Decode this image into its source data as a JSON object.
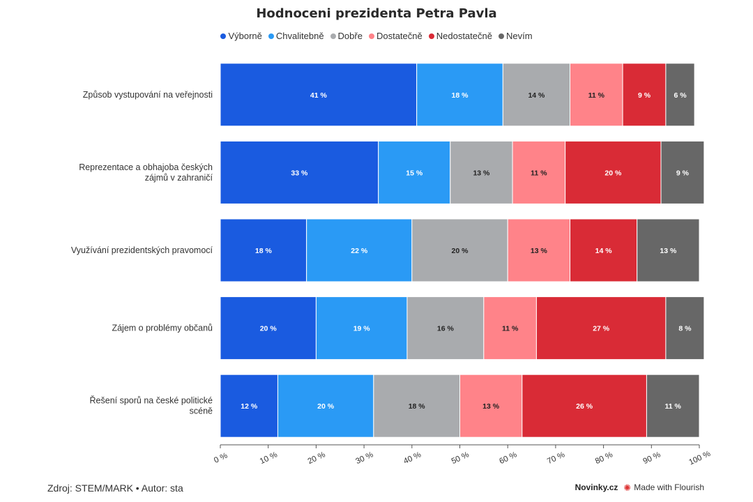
{
  "title": "Hodnoceni prezidenta Petra Pavla",
  "legend": [
    {
      "label": "Výborně",
      "color": "#1a5be0"
    },
    {
      "label": "Chvalitebně",
      "color": "#2a9af5"
    },
    {
      "label": "Dobře",
      "color": "#a9abae"
    },
    {
      "label": "Dostatečně",
      "color": "#ff8389"
    },
    {
      "label": "Nedostatečně",
      "color": "#d92b36"
    },
    {
      "label": "Nevím",
      "color": "#676767"
    }
  ],
  "chart_data": {
    "type": "bar",
    "orientation": "horizontal",
    "stacked": true,
    "categories": [
      "Způsob vystupování na veřejnosti",
      "Reprezentace a obhajoba českých zájmů v zahraničí",
      "Využívání prezidentských pravomocí",
      "Zájem o problémy občanů",
      "Řešení sporů na české politické scéně"
    ],
    "series": [
      {
        "name": "Výborně",
        "values": [
          41,
          33,
          18,
          20,
          12
        ]
      },
      {
        "name": "Chvalitebně",
        "values": [
          18,
          15,
          22,
          19,
          20
        ]
      },
      {
        "name": "Dobře",
        "values": [
          14,
          13,
          20,
          16,
          18
        ]
      },
      {
        "name": "Dostatečně",
        "values": [
          11,
          11,
          13,
          11,
          13
        ]
      },
      {
        "name": "Nedostatečně",
        "values": [
          9,
          20,
          14,
          27,
          26
        ]
      },
      {
        "name": "Nevím",
        "values": [
          6,
          9,
          13,
          8,
          11
        ]
      }
    ],
    "value_suffix": " %",
    "xlim": [
      0,
      100
    ],
    "x_ticks": [
      "0 %",
      "10 %",
      "20 %",
      "30 %",
      "40 %",
      "50 %",
      "60 %",
      "70 %",
      "80 %",
      "90 %",
      "100 %"
    ],
    "label_colors": [
      "#ffffff",
      "#ffffff",
      "#222222",
      "#222222",
      "#ffffff",
      "#ffffff"
    ],
    "legend_position": "top",
    "grid": false
  },
  "footer": {
    "source": "Zdroj: STEM/MARK • Autor: sta",
    "brand": "Novinky.cz",
    "credit": "Made with Flourish"
  }
}
